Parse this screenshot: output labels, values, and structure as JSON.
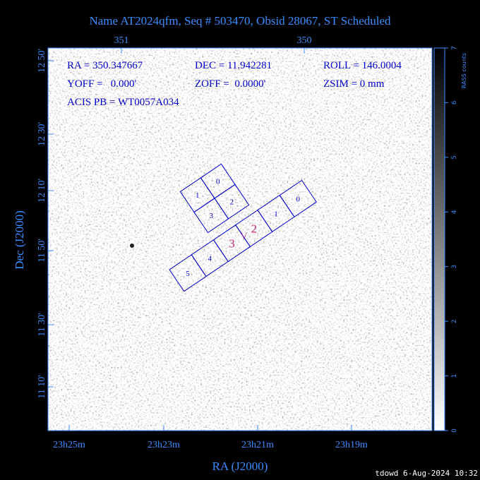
{
  "header": {
    "title": "Name AT2024qfm, Seq # 503470, Obsid 28067, ST Scheduled"
  },
  "axes": {
    "x_label": "RA (J2000)",
    "y_label": "Dec (J2000)",
    "top_ticks": [
      "351",
      "350"
    ],
    "bottom_ticks": [
      "23h25m",
      "23h23m",
      "23h21m",
      "23h19m"
    ],
    "left_ticks": [
      "12 50'",
      "12 30'",
      "12 10'",
      "11 50'",
      "11 30'",
      "11 10'"
    ]
  },
  "info": {
    "lines": [
      [
        "RA = 350.347667",
        "DEC = 11.942281",
        "ROLL = 146.0004"
      ],
      [
        "YOFF =   0.000'",
        "ZOFF =  0.0000'",
        "ZSIM = 0 mm"
      ],
      [
        "ACIS PB = WT0057A034"
      ]
    ]
  },
  "acis_i": {
    "chips": [
      "1",
      "0",
      "3",
      "2"
    ]
  },
  "acis_s": {
    "chips": [
      "5",
      "4",
      "3",
      "2",
      "1",
      "0"
    ],
    "aimpoint": "\\/"
  },
  "colorbar": {
    "label": "RASS counts",
    "ticks": [
      "0",
      "1",
      "2",
      "3",
      "4",
      "5",
      "6",
      "7"
    ]
  },
  "footer": {
    "stamp": "tdowd  6-Aug-2024 10:32"
  }
}
